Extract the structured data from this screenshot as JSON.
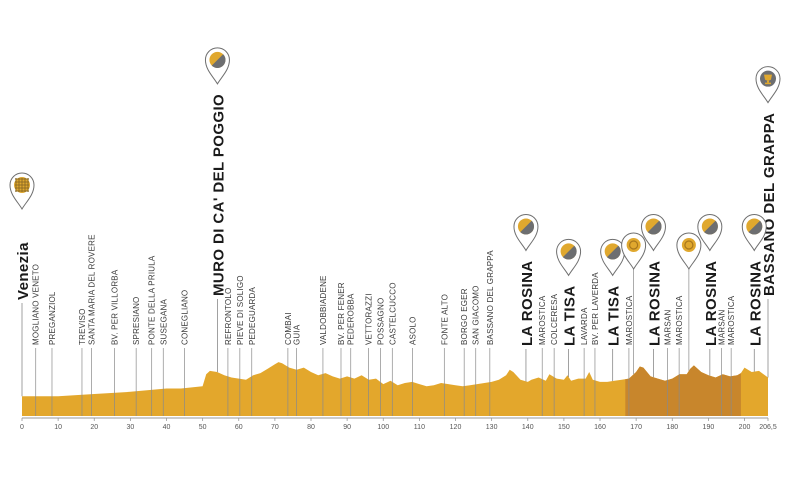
{
  "colors": {
    "profile": "#e3a72c",
    "circuit": "#c8862c",
    "gridline": "#8a8a8a",
    "axis": "#9a9a9a",
    "marker_fill": "#ffffff",
    "marker_stroke": "#6f6f6f",
    "icon_gold": "#e0a82e",
    "icon_grey": "#6d6e70"
  },
  "chart_data": {
    "type": "area",
    "x_unit": "km",
    "xlim": [
      0,
      206.5
    ],
    "x_ticks": [
      "0",
      "10",
      "20",
      "30",
      "40",
      "50",
      "60",
      "70",
      "80",
      "90",
      "100",
      "110",
      "120",
      "130",
      "140",
      "150",
      "160",
      "170",
      "180",
      "190",
      "200",
      "206,5"
    ],
    "tick_values": [
      0,
      10,
      20,
      30,
      40,
      50,
      60,
      70,
      80,
      90,
      100,
      110,
      120,
      130,
      140,
      150,
      160,
      170,
      180,
      190,
      200,
      206.5
    ],
    "circuit_range_km": [
      167,
      199
    ],
    "elevation_profile": {
      "x": [
        0,
        10,
        20,
        30,
        40,
        44,
        50,
        51,
        52,
        54,
        56,
        58,
        60,
        62,
        64,
        66,
        68,
        70,
        71,
        72,
        74,
        76,
        78,
        80,
        82,
        84,
        86,
        88,
        90,
        92,
        94,
        96,
        98,
        100,
        102,
        104,
        106,
        108,
        110,
        112,
        114,
        116,
        118,
        120,
        122,
        124,
        126,
        128,
        130,
        132,
        134,
        135,
        136,
        138,
        140,
        141,
        143,
        145,
        146,
        148,
        150,
        151,
        152,
        154,
        156,
        157,
        158,
        160,
        162,
        164,
        166,
        168,
        170,
        171,
        172,
        174,
        176,
        178,
        180,
        182,
        184,
        185,
        186,
        188,
        190,
        192,
        194,
        196,
        198,
        199,
        200,
        202,
        204,
        206.5
      ],
      "y": [
        18,
        18,
        20,
        22,
        25,
        25,
        27,
        38,
        41,
        40,
        37,
        35,
        34,
        33,
        37,
        39,
        43,
        47,
        49,
        48,
        44,
        42,
        44,
        40,
        37,
        39,
        36,
        34,
        36,
        34,
        37,
        33,
        34,
        29,
        32,
        28,
        30,
        31,
        29,
        27,
        28,
        30,
        29,
        28,
        27,
        28,
        29,
        30,
        31,
        33,
        37,
        42,
        40,
        33,
        31,
        33,
        35,
        32,
        38,
        34,
        33,
        37,
        32,
        34,
        34,
        40,
        33,
        31,
        31,
        32,
        33,
        34,
        40,
        45,
        44,
        36,
        34,
        32,
        34,
        38,
        38,
        43,
        46,
        40,
        37,
        35,
        38,
        36,
        37,
        39,
        44,
        40,
        41,
        35
      ]
    },
    "locations": [
      {
        "name": "MOGLIANO VENETO",
        "km": 3.8
      },
      {
        "name": "PREGANZIOL",
        "km": 8.3
      },
      {
        "name": "TREVISO",
        "km": 16.6
      },
      {
        "name": "SANTA MARIA DEL ROVERE",
        "km": 19.2
      },
      {
        "name": "BV. PER VILLORBA",
        "km": 25.6
      },
      {
        "name": "SPRESIANO",
        "km": 31.6
      },
      {
        "name": "PONTE DELLA PRIULA",
        "km": 35.9
      },
      {
        "name": "SUSEGANA",
        "km": 39.1
      },
      {
        "name": "CONEGLIANO",
        "km": 45.0
      },
      {
        "name": "REFRONTOLO",
        "km": 57.0
      },
      {
        "name": "PIEVE DI SOLIGO",
        "km": 60.3
      },
      {
        "name": "PEDEGUARDA",
        "km": 63.6
      },
      {
        "name": "COMBAI",
        "km": 73.6
      },
      {
        "name": "GUIA",
        "km": 76.0
      },
      {
        "name": "VALDOBBIADENE",
        "km": 83.3
      },
      {
        "name": "BV. PER FENER",
        "km": 88.3
      },
      {
        "name": "PEDEROBBA",
        "km": 91.0
      },
      {
        "name": "VETTORAZZI",
        "km": 95.9
      },
      {
        "name": "POSSAGNO",
        "km": 99.2
      },
      {
        "name": "CASTELCUCCO",
        "km": 102.5
      },
      {
        "name": "ASOLO",
        "km": 108.1
      },
      {
        "name": "FONTE ALTO",
        "km": 116.9
      },
      {
        "name": "BORGO EGER",
        "km": 122.4
      },
      {
        "name": "SAN GIACOMO",
        "km": 125.6
      },
      {
        "name": "BASSANO DEL GRAPPA",
        "km": 129.5
      },
      {
        "name": "MAROSTICA",
        "km": 144.0
      },
      {
        "name": "COLCERESA",
        "km": 147.3
      },
      {
        "name": "LAVARDA",
        "km": 155.6
      },
      {
        "name": "BV. PER LAVERDA",
        "km": 158.6
      },
      {
        "name": "MAROSTICA",
        "km": 168.0
      },
      {
        "name": "MARSAN",
        "km": 178.7
      },
      {
        "name": "MAROSTICA",
        "km": 181.9
      },
      {
        "name": "MARSAN",
        "km": 193.6
      },
      {
        "name": "MAROSTICA",
        "km": 196.3
      }
    ],
    "key_points": [
      {
        "name": "Venezia",
        "km": 0,
        "icon": "start"
      },
      {
        "name": "MURO DI CA' DEL POGGIO",
        "km": 54.1,
        "icon": "gpm"
      },
      {
        "name": "LA ROSINA",
        "km": 139.5,
        "icon": "gpm"
      },
      {
        "name": "LA TISA",
        "km": 151.3,
        "icon": "gpm"
      },
      {
        "name": "LA TISA",
        "km": 163.5,
        "icon": "gpm"
      },
      {
        "name": "LA ROSINA",
        "km": 174.8,
        "icon": "gpm"
      },
      {
        "name": "LA ROSINA",
        "km": 190.4,
        "icon": "gpm"
      },
      {
        "name": "LA ROSINA",
        "km": 202.7,
        "icon": "gpm"
      },
      {
        "name": "BASSANO DEL GRAPPA",
        "km": 206.5,
        "icon": "finish"
      }
    ],
    "intermediate_sprints": [
      {
        "km": 169.3,
        "icon": "sprint"
      },
      {
        "km": 184.6,
        "icon": "sprint"
      }
    ]
  }
}
